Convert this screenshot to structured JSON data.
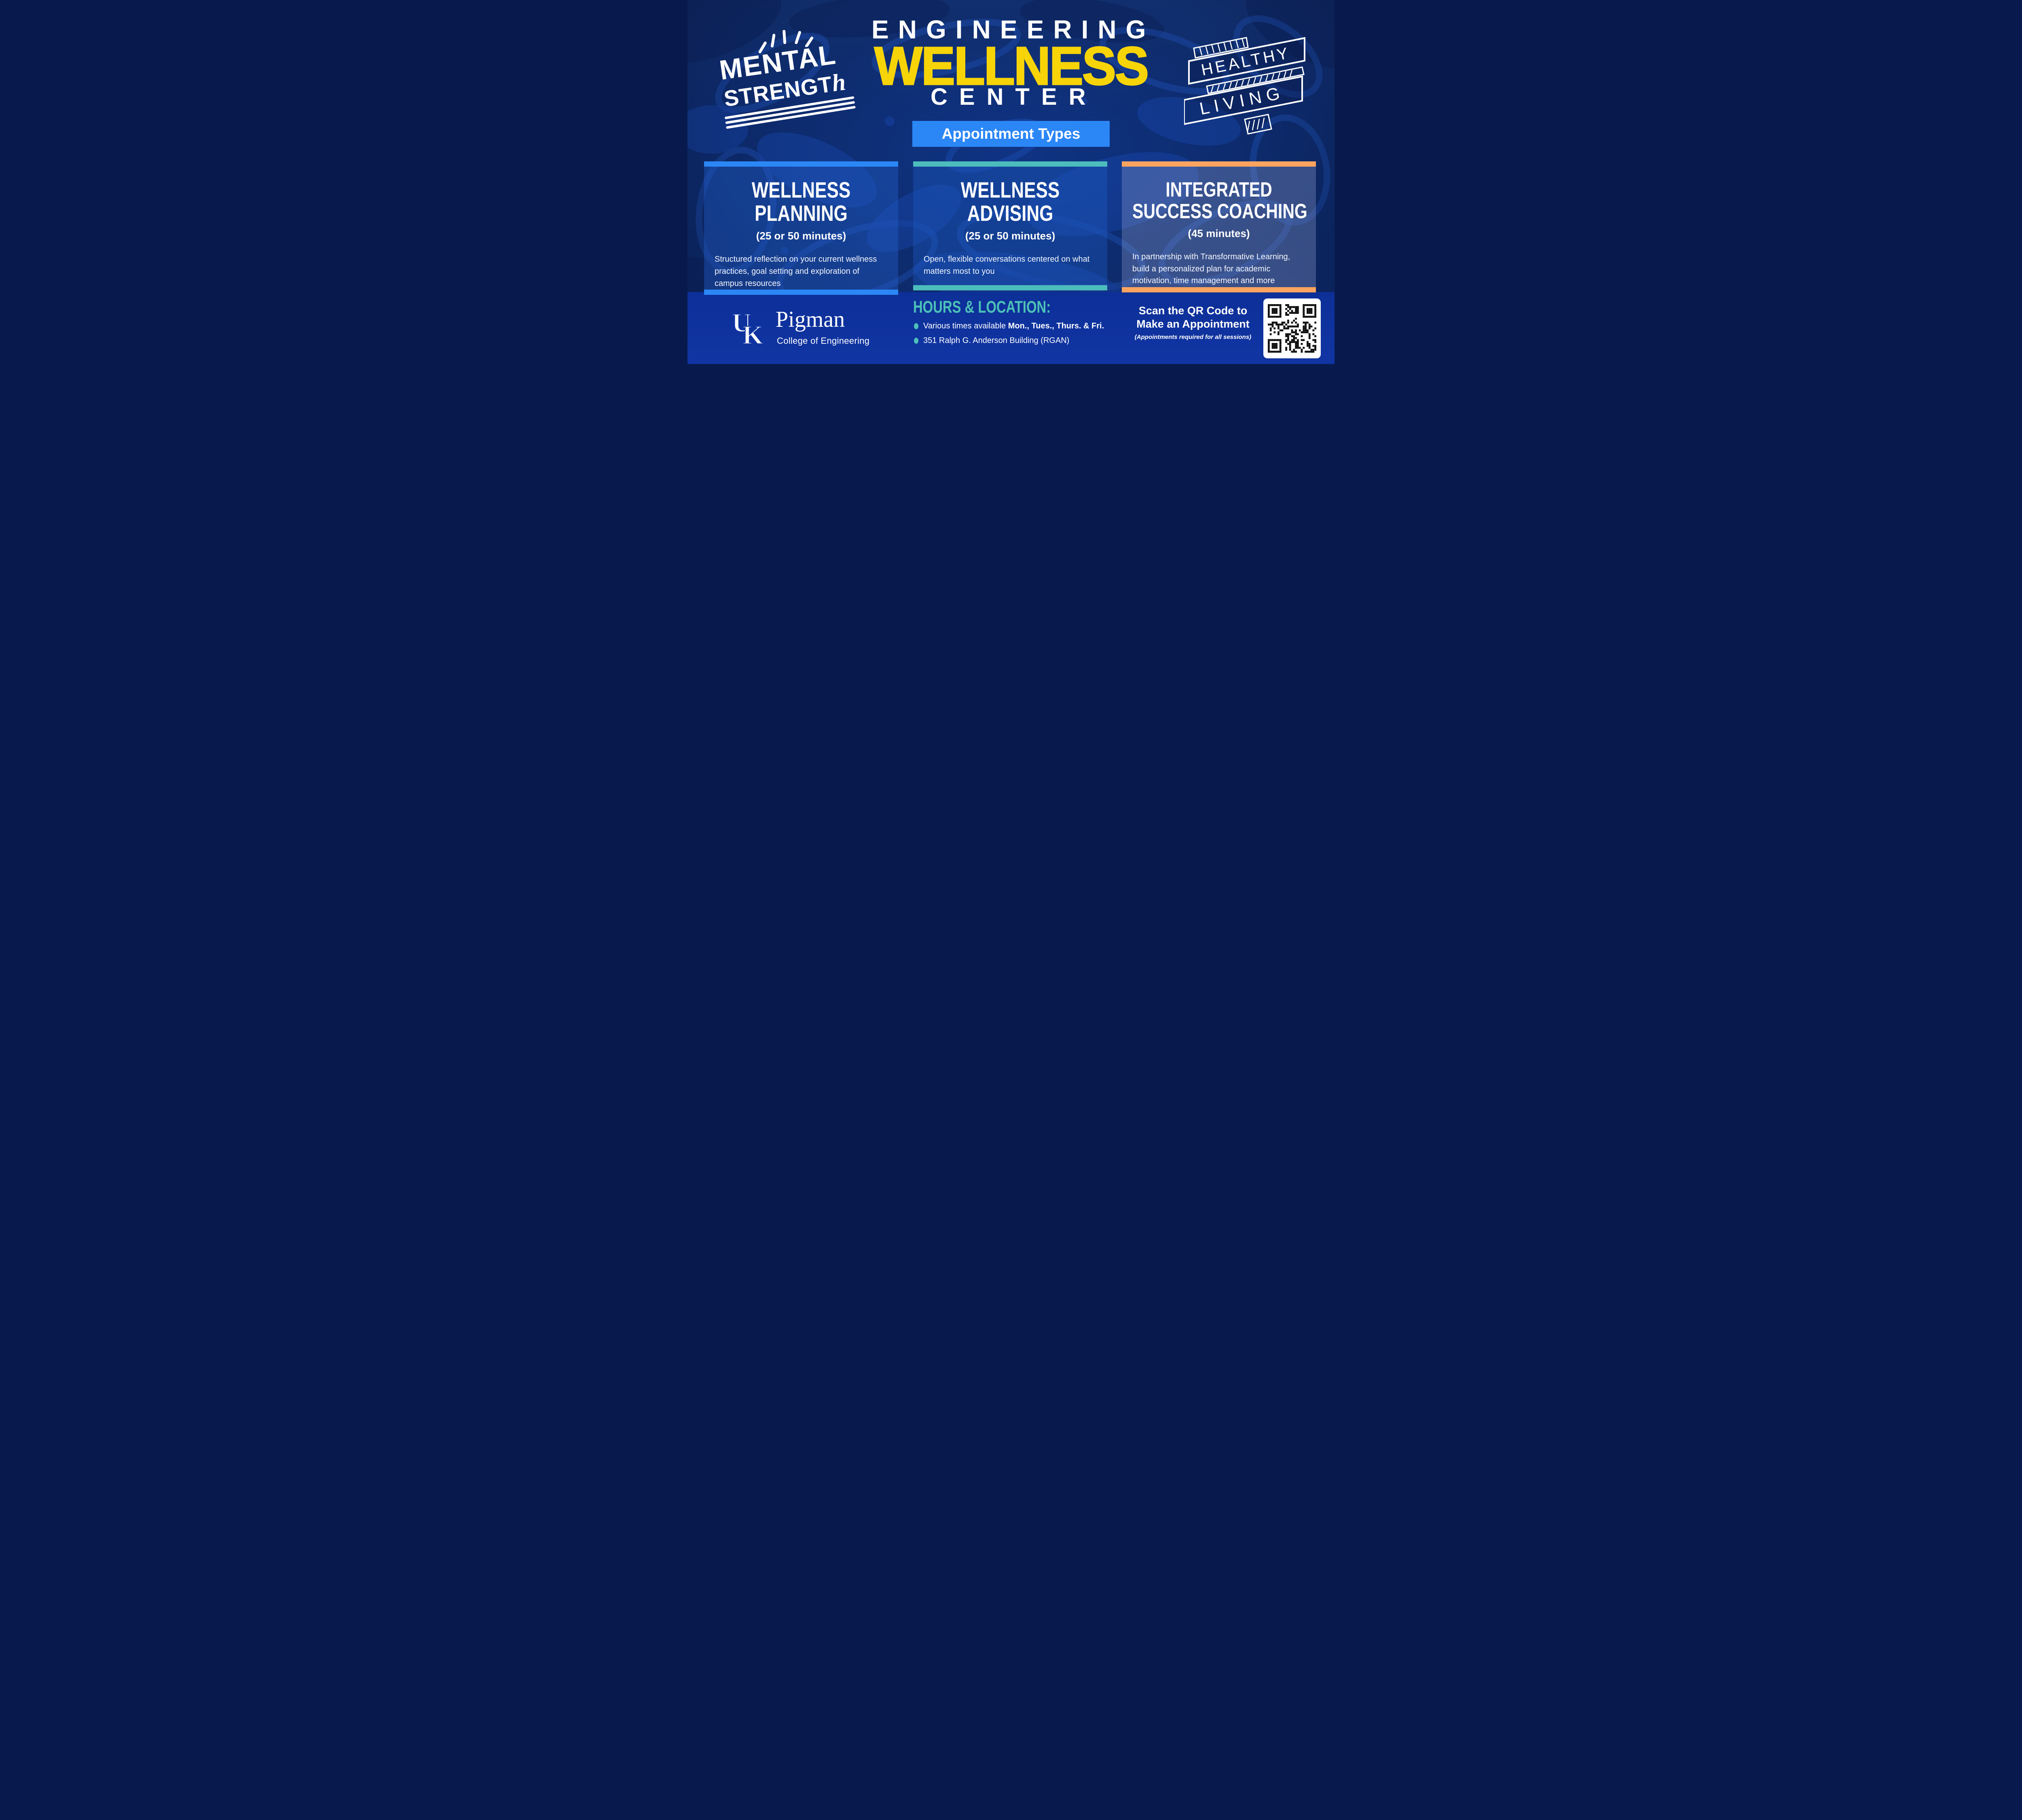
{
  "poster": {
    "title": {
      "line1": "ENGINEERING",
      "line2": "WELLNESS",
      "line3": "CENTER"
    },
    "badge_label": "Appointment Types",
    "doodles": {
      "mental": {
        "line1": "MENTAL",
        "line2_caps": "STRENGT",
        "line2_script": "h"
      },
      "healthy": {
        "line1": "HEALTHY",
        "line2": "LIVING"
      }
    },
    "cards": [
      {
        "title_lines": [
          "WELLNESS",
          "PLANNING"
        ],
        "duration": "(25 or 50 minutes)",
        "description": "Structured reflection on your current wellness practices, goal setting and exploration of campus resources",
        "accent": "#2b87f6"
      },
      {
        "title_lines": [
          "WELLNESS",
          "ADVISING"
        ],
        "duration": "(25 or 50 minutes)",
        "description": "Open, flexible conversations centered on what matters most to you",
        "accent": "#4cbcbc"
      },
      {
        "title_lines": [
          "INTEGRATED",
          "SUCCESS COACHING"
        ],
        "duration": "(45 minutes)",
        "description": "In partnership with Transformative Learning, build a personalized plan for academic motivation, time management and more",
        "accent": "#fca45f"
      }
    ],
    "footer": {
      "logo": {
        "mark_u": "U",
        "mark_k": "K",
        "name": "Pigman",
        "college": "College of Engineering"
      },
      "hours": {
        "heading": "HOURS & LOCATION:",
        "items": [
          {
            "regular": "Various times available ",
            "bold": "Mon., Tues., Thurs. & Fri."
          },
          {
            "regular": "351 Ralph G. Anderson Building (RGAN)",
            "bold": ""
          }
        ]
      },
      "qr": {
        "line1": "Scan the QR Code to",
        "line2": "Make an Appointment",
        "note": "(Appointments required for all sessions)"
      }
    },
    "icons": {
      "rays": "hand-drawn-rays",
      "underline": "triple-underline",
      "ribbon": "hand-drawn-ribbon-banner",
      "bullet": "teal-oval-bullet",
      "qr": "qr-code"
    },
    "colors": {
      "navy_bg": "#0c2a69",
      "royal_bottom": "#1035a3",
      "bright_blue": "#2b87f6",
      "teal": "#4cbcbc",
      "orange": "#fca45f",
      "yellow": "#f7d408",
      "white": "#ffffff"
    }
  }
}
